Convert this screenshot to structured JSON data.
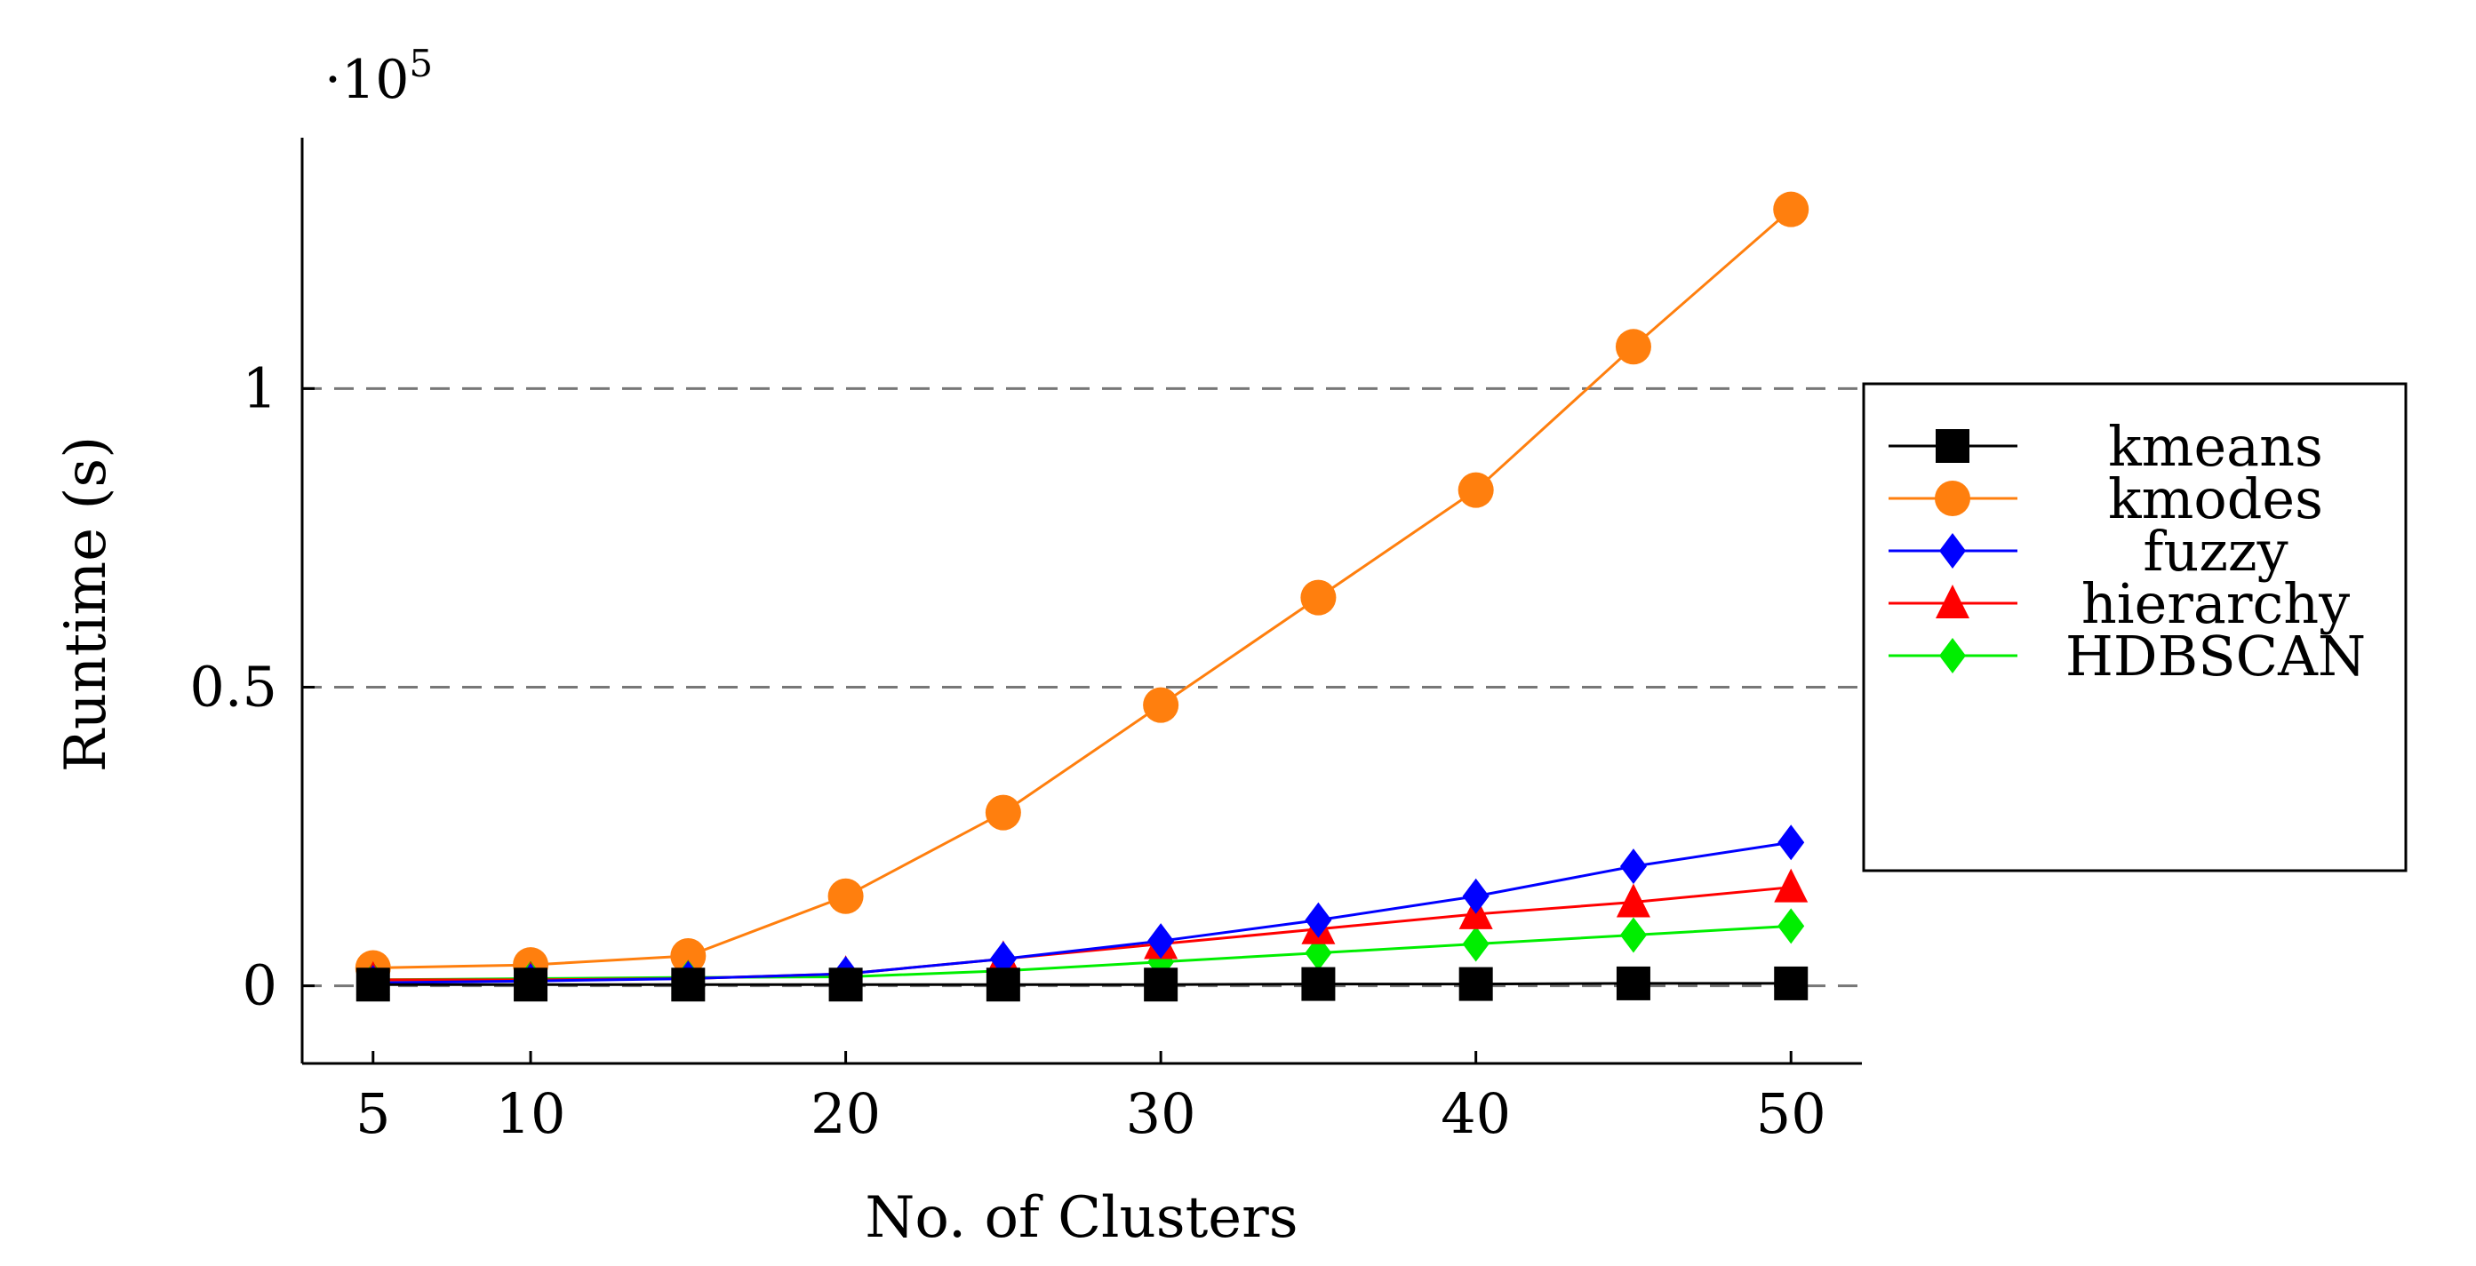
{
  "chart_data": {
    "type": "line",
    "title": "",
    "xlabel": "No. of Clusters",
    "ylabel": "Runtime (s)",
    "y_scale_prefix": "·10",
    "y_scale_exponent": "5",
    "x": [
      5,
      10,
      15,
      20,
      25,
      30,
      35,
      40,
      45,
      50
    ],
    "x_ticks": [
      5,
      10,
      20,
      30,
      40,
      50
    ],
    "x_tick_labels": [
      "5",
      "10",
      "20",
      "30",
      "40",
      "50"
    ],
    "xlim": [
      2.75,
      52.25
    ],
    "ylim": [
      -0.13,
      1.42
    ],
    "y_ticks": [
      0,
      0.5,
      1
    ],
    "y_tick_labels": [
      "0",
      "0.5",
      "1"
    ],
    "gridlines_y": [
      0,
      0.5,
      1
    ],
    "legend_position": "right",
    "series": [
      {
        "name": "kmeans",
        "color": "#000000",
        "marker": "square",
        "values": [
          0.002,
          0.002,
          0.002,
          0.002,
          0.002,
          0.002,
          0.003,
          0.003,
          0.004,
          0.004
        ]
      },
      {
        "name": "kmodes",
        "color": "#ff7f0e",
        "marker": "circle",
        "values": [
          0.03,
          0.035,
          0.05,
          0.15,
          0.29,
          0.47,
          0.65,
          0.83,
          1.07,
          1.3
        ]
      },
      {
        "name": "fuzzy",
        "color": "#0000ff",
        "marker": "diamond",
        "values": [
          0.005,
          0.008,
          0.012,
          0.02,
          0.045,
          0.075,
          0.11,
          0.15,
          0.2,
          0.24
        ]
      },
      {
        "name": "hierarchy",
        "color": "#ff0000",
        "marker": "triangle",
        "values": [
          0.01,
          0.01,
          0.012,
          0.02,
          0.045,
          0.07,
          0.095,
          0.12,
          0.14,
          0.165
        ]
      },
      {
        "name": "HDBSCAN",
        "color": "#00ee00",
        "marker": "diamond",
        "values": [
          0.01,
          0.012,
          0.014,
          0.015,
          0.025,
          0.04,
          0.055,
          0.07,
          0.085,
          0.1
        ]
      }
    ]
  }
}
